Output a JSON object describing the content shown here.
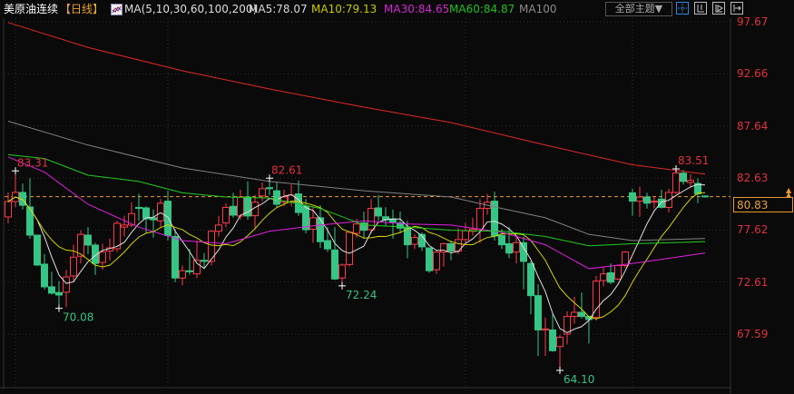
{
  "header": {
    "symbol": "美原油连续",
    "period": "【日线】",
    "indicator": "MA(5,10,30,60,100,200)",
    "ma_values": [
      {
        "label": "MA5:78.07",
        "color": "#d8d8d8"
      },
      {
        "label": "MA10:79.13",
        "color": "#c8c800"
      },
      {
        "label": "MA30:84.65",
        "color": "#d428d4"
      },
      {
        "label": "MA60:84.87",
        "color": "#22c022"
      },
      {
        "label": "MA100",
        "color": "#8a8a8a"
      }
    ],
    "theme_button": "全部主题▼",
    "tools": [
      "crosshair-icon",
      "zoom-range-icon",
      "play-icon",
      "exit-right-icon"
    ]
  },
  "current_price": "80.83",
  "colors": {
    "up": "#ff3b4a",
    "down": "#35c585",
    "axis_label": "#e0323f",
    "current_line": "#e89a30"
  },
  "chart_data": {
    "type": "candlestick",
    "title": "",
    "y_ticks": [
      "97.67",
      "92.66",
      "87.64",
      "82.63",
      "77.62",
      "72.61",
      "67.59"
    ],
    "ylim": [
      63.4,
      98.5
    ],
    "grid": true,
    "candle_fields": [
      "open",
      "high",
      "low",
      "close"
    ],
    "candles": [
      [
        78.88,
        81.24,
        78.27,
        80.36
      ],
      [
        80.36,
        83.31,
        79.84,
        81.24
      ],
      [
        81.24,
        82.1,
        79.6,
        80.0
      ],
      [
        79.84,
        82.6,
        76.78,
        77.13
      ],
      [
        77.13,
        77.13,
        74.16,
        74.25
      ],
      [
        74.33,
        75.3,
        71.9,
        72.15
      ],
      [
        72.15,
        73.6,
        71.4,
        71.54
      ],
      [
        71.6,
        72.7,
        70.08,
        71.36
      ],
      [
        71.63,
        73.8,
        70.2,
        73.1
      ],
      [
        73.2,
        76.2,
        72.7,
        75.0
      ],
      [
        75.1,
        77.6,
        74.4,
        77.2
      ],
      [
        77.13,
        77.9,
        75.3,
        76.17
      ],
      [
        76.17,
        76.4,
        73.3,
        74.4
      ],
      [
        74.5,
        76.3,
        73.8,
        75.5
      ],
      [
        75.6,
        76.8,
        74.7,
        75.9
      ],
      [
        75.82,
        78.5,
        75.5,
        78.27
      ],
      [
        77.9,
        79.0,
        77.0,
        78.1
      ],
      [
        78.1,
        80.3,
        77.9,
        79.2
      ],
      [
        79.8,
        81.1,
        78.5,
        79.7
      ],
      [
        79.75,
        79.9,
        77.3,
        78.7
      ],
      [
        78.8,
        79.6,
        76.9,
        78.6
      ],
      [
        78.5,
        80.6,
        77.9,
        80.2
      ],
      [
        80.4,
        81.4,
        76.6,
        77.1
      ],
      [
        77.0,
        77.7,
        72.6,
        73.0
      ],
      [
        73.0,
        74.2,
        72.3,
        73.7
      ],
      [
        73.7,
        75.8,
        73.3,
        73.6
      ],
      [
        73.4,
        76.6,
        73.0,
        74.7
      ],
      [
        74.7,
        75.4,
        73.9,
        74.6
      ],
      [
        74.6,
        77.6,
        74.2,
        77.5
      ],
      [
        77.5,
        79.0,
        77.0,
        78.1
      ],
      [
        78.3,
        80.2,
        77.9,
        79.8
      ],
      [
        79.9,
        81.2,
        78.8,
        79.05
      ],
      [
        78.97,
        81.5,
        78.6,
        80.8
      ],
      [
        80.8,
        82.3,
        78.6,
        78.97
      ],
      [
        79.0,
        81.0,
        77.8,
        80.3
      ],
      [
        80.9,
        82.2,
        80.4,
        81.6
      ],
      [
        81.7,
        82.61,
        81.0,
        81.6
      ],
      [
        81.4,
        82.2,
        79.8,
        80.1
      ],
      [
        80.3,
        81.5,
        79.9,
        80.8
      ],
      [
        80.3,
        82.0,
        79.9,
        81.0
      ],
      [
        81.1,
        82.4,
        78.97,
        79.3
      ],
      [
        79.9,
        80.6,
        77.3,
        77.65
      ],
      [
        77.7,
        79.8,
        76.4,
        78.8
      ],
      [
        78.8,
        80.0,
        75.9,
        76.5
      ],
      [
        76.6,
        77.9,
        75.5,
        75.8
      ],
      [
        75.7,
        77.9,
        72.8,
        72.9
      ],
      [
        73.0,
        74.4,
        72.24,
        74.25
      ],
      [
        74.3,
        77.5,
        74.1,
        77.4
      ],
      [
        77.3,
        78.7,
        76.9,
        78.2
      ],
      [
        78.3,
        79.4,
        76.8,
        77.6
      ],
      [
        77.65,
        80.6,
        77.3,
        79.7
      ],
      [
        79.75,
        81.0,
        78.5,
        78.97
      ],
      [
        78.9,
        79.8,
        78.0,
        78.6
      ],
      [
        78.7,
        79.6,
        76.8,
        78.4
      ],
      [
        78.3,
        79.4,
        77.3,
        77.8
      ],
      [
        77.9,
        78.5,
        74.9,
        76.2
      ],
      [
        76.25,
        77.2,
        75.8,
        76.9
      ],
      [
        77.2,
        77.4,
        75.6,
        76.0
      ],
      [
        75.9,
        75.9,
        73.5,
        73.7
      ],
      [
        73.8,
        75.7,
        73.4,
        75.5
      ],
      [
        75.5,
        76.4,
        74.1,
        76.3
      ],
      [
        76.3,
        76.6,
        74.7,
        75.6
      ],
      [
        75.6,
        77.8,
        75.3,
        76.7
      ],
      [
        76.7,
        78.3,
        76.2,
        77.55
      ],
      [
        77.5,
        78.8,
        77.1,
        77.7
      ],
      [
        77.7,
        80.6,
        76.4,
        79.7
      ],
      [
        79.7,
        81.1,
        79.1,
        80.3
      ],
      [
        80.4,
        81.3,
        76.6,
        77.05
      ],
      [
        77.1,
        77.7,
        75.8,
        76.2
      ],
      [
        76.3,
        77.9,
        74.9,
        75.4
      ],
      [
        75.5,
        77.0,
        74.4,
        76.4
      ],
      [
        76.4,
        77.0,
        71.9,
        74.6
      ],
      [
        74.4,
        74.6,
        69.5,
        71.3
      ],
      [
        71.3,
        72.4,
        65.5,
        68.0
      ],
      [
        68.0,
        69.2,
        65.5,
        68.1
      ],
      [
        68.0,
        69.5,
        65.9,
        66.0
      ],
      [
        66.4,
        67.5,
        64.1,
        67.3
      ],
      [
        67.6,
        69.8,
        66.6,
        69.3
      ],
      [
        69.3,
        71.2,
        68.6,
        69.7
      ],
      [
        69.7,
        71.6,
        69.1,
        69.3
      ],
      [
        69.3,
        69.3,
        66.7,
        69.0
      ],
      [
        69.2,
        73.2,
        68.9,
        72.7
      ],
      [
        72.75,
        74.0,
        72.2,
        73.4
      ],
      [
        73.5,
        74.4,
        72.4,
        72.6
      ],
      [
        72.9,
        74.3,
        72.8,
        74.2
      ],
      [
        74.2,
        75.6,
        74.0,
        75.5
      ],
      [
        81.2,
        81.6,
        79.0,
        80.4
      ],
      [
        80.4,
        81.8,
        78.9,
        80.8
      ],
      [
        80.8,
        81.2,
        79.7,
        80.2
      ],
      [
        80.3,
        80.9,
        79.7,
        80.4
      ],
      [
        80.6,
        81.5,
        79.7,
        79.8
      ],
      [
        79.8,
        81.6,
        79.3,
        81.24
      ],
      [
        81.24,
        83.51,
        81.1,
        83.1
      ],
      [
        83.1,
        83.4,
        82.0,
        82.3
      ],
      [
        82.2,
        83.0,
        81.7,
        82.4
      ],
      [
        82.1,
        82.6,
        80.2,
        81.1
      ],
      [
        80.9,
        80.95,
        80.75,
        80.83
      ]
    ],
    "moving_averages": [
      {
        "name": "MA5",
        "period": 5,
        "color": "#e0e0e0"
      },
      {
        "name": "MA10",
        "period": 10,
        "color": "#d4d400"
      },
      {
        "name": "MA30",
        "color": "#e020e0",
        "points": [
          [
            0,
            84.65
          ],
          [
            5,
            83.2
          ],
          [
            11,
            80.1
          ],
          [
            18,
            77.9
          ],
          [
            24,
            76.6
          ],
          [
            30,
            76.3
          ],
          [
            36,
            77.5
          ],
          [
            43,
            78.1
          ],
          [
            49,
            78.5
          ],
          [
            55,
            78.2
          ],
          [
            61,
            78.1
          ],
          [
            68,
            77.4
          ],
          [
            74,
            76.2
          ],
          [
            80,
            73.9
          ],
          [
            86,
            74.4
          ],
          [
            96,
            75.4
          ]
        ]
      },
      {
        "name": "MA60",
        "color": "#22cc22",
        "points": [
          [
            0,
            84.87
          ],
          [
            5,
            84.5
          ],
          [
            11,
            82.9
          ],
          [
            18,
            82.3
          ],
          [
            24,
            81.2
          ],
          [
            30,
            80.8
          ],
          [
            36,
            80.7
          ],
          [
            43,
            79.7
          ],
          [
            49,
            78.1
          ],
          [
            55,
            77.9
          ],
          [
            61,
            77.6
          ],
          [
            68,
            77.5
          ],
          [
            74,
            77.0
          ],
          [
            80,
            76.1
          ],
          [
            86,
            76.3
          ],
          [
            96,
            76.5
          ]
        ]
      },
      {
        "name": "MA100",
        "color": "#808080",
        "points": [
          [
            0,
            88.1
          ],
          [
            11,
            85.8
          ],
          [
            24,
            83.6
          ],
          [
            36,
            82.3
          ],
          [
            49,
            81.4
          ],
          [
            61,
            80.8
          ],
          [
            68,
            79.7
          ],
          [
            74,
            78.8
          ],
          [
            80,
            77.2
          ],
          [
            86,
            76.6
          ],
          [
            96,
            76.8
          ]
        ]
      },
      {
        "name": "MA200",
        "color": "#e02828",
        "points": [
          [
            0,
            97.6
          ],
          [
            11,
            95.2
          ],
          [
            24,
            92.95
          ],
          [
            36,
            91.2
          ],
          [
            49,
            89.45
          ],
          [
            61,
            87.97
          ],
          [
            74,
            85.8
          ],
          [
            86,
            83.9
          ],
          [
            96,
            83.0
          ]
        ]
      }
    ],
    "annotations": [
      {
        "text": "83.31",
        "index": 1,
        "value": 83.31,
        "kind": "high"
      },
      {
        "text": "70.08",
        "index": 7,
        "value": 70.08,
        "kind": "low"
      },
      {
        "text": "82.61",
        "index": 36,
        "value": 82.61,
        "kind": "high"
      },
      {
        "text": "72.24",
        "index": 46,
        "value": 72.24,
        "kind": "low"
      },
      {
        "text": "64.10",
        "index": 76,
        "value": 64.1,
        "kind": "low"
      },
      {
        "text": "83.51",
        "index": 92,
        "value": 83.51,
        "kind": "high"
      }
    ]
  }
}
